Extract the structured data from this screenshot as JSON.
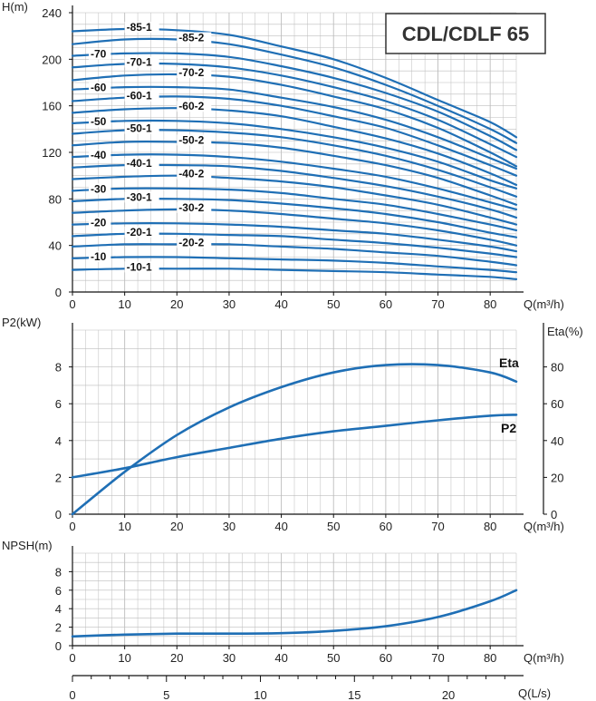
{
  "title": "CDL/CDLF 65",
  "colors": {
    "curve": "#1f6fb5",
    "grid": "#bdbdbd",
    "axis": "#111111",
    "text": "#222222"
  },
  "chart_data": [
    {
      "type": "line",
      "title": "CDL/CDLF 65",
      "xlabel": "Q(m³/h)",
      "ylabel": "H(m)",
      "xlim": [
        0,
        85
      ],
      "ylim": [
        0,
        240
      ],
      "x_ticks": [
        0,
        10,
        20,
        30,
        40,
        50,
        60,
        70,
        80
      ],
      "y_ticks": [
        0,
        40,
        80,
        120,
        160,
        200,
        240
      ],
      "grid": true,
      "series": [
        {
          "name": "-85-1",
          "x": [
            0,
            10,
            20,
            30,
            40,
            50,
            60,
            70,
            80,
            85
          ],
          "y": [
            224,
            226,
            225,
            221,
            211,
            200,
            184,
            165,
            146,
            133
          ]
        },
        {
          "name": "-85-2",
          "x": [
            0,
            10,
            20,
            30,
            40,
            50,
            60,
            70,
            80,
            85
          ],
          "y": [
            213,
            217,
            217,
            213,
            204,
            193,
            178,
            160,
            140,
            128
          ]
        },
        {
          "name": "-70",
          "x": [
            0,
            10,
            20,
            30,
            40,
            50,
            60,
            70,
            80,
            85
          ],
          "y": [
            203,
            205,
            205,
            202,
            194,
            184,
            171,
            155,
            134,
            122
          ]
        },
        {
          "name": "-70-1",
          "x": [
            0,
            10,
            20,
            30,
            40,
            50,
            60,
            70,
            80,
            85
          ],
          "y": [
            193,
            196,
            196,
            193,
            186,
            176,
            164,
            148,
            127,
            116
          ]
        },
        {
          "name": "-70-2",
          "x": [
            0,
            10,
            20,
            30,
            40,
            50,
            60,
            70,
            80,
            85
          ],
          "y": [
            182,
            186,
            187,
            185,
            178,
            168,
            157,
            141,
            120,
            108
          ]
        },
        {
          "name": "-60",
          "x": [
            0,
            10,
            20,
            30,
            40,
            50,
            60,
            70,
            80,
            85
          ],
          "y": [
            174,
            176,
            176,
            174,
            167,
            159,
            148,
            133,
            115,
            106
          ]
        },
        {
          "name": "-60-1",
          "x": [
            0,
            10,
            20,
            30,
            40,
            50,
            60,
            70,
            80,
            85
          ],
          "y": [
            164,
            167,
            168,
            166,
            160,
            151,
            141,
            126,
            109,
            100
          ]
        },
        {
          "name": "-60-2",
          "x": [
            0,
            10,
            20,
            30,
            40,
            50,
            60,
            70,
            80,
            85
          ],
          "y": [
            154,
            157,
            158,
            156,
            151,
            142,
            132,
            119,
            102,
            92
          ]
        },
        {
          "name": "-50",
          "x": [
            0,
            10,
            20,
            30,
            40,
            50,
            60,
            70,
            80,
            85
          ],
          "y": [
            145,
            147,
            147,
            145,
            140,
            133,
            124,
            112,
            96,
            89
          ]
        },
        {
          "name": "-50-1",
          "x": [
            0,
            10,
            20,
            30,
            40,
            50,
            60,
            70,
            80,
            85
          ],
          "y": [
            136,
            139,
            139,
            137,
            133,
            126,
            117,
            105,
            90,
            82
          ]
        },
        {
          "name": "-50-2",
          "x": [
            0,
            10,
            20,
            30,
            40,
            50,
            60,
            70,
            80,
            85
          ],
          "y": [
            126,
            129,
            129,
            128,
            124,
            117,
            109,
            98,
            83,
            75
          ]
        },
        {
          "name": "-40",
          "x": [
            0,
            10,
            20,
            30,
            40,
            50,
            60,
            70,
            80,
            85
          ],
          "y": [
            116,
            118,
            118,
            116,
            112,
            106,
            99,
            89,
            77,
            71
          ]
        },
        {
          "name": "-40-1",
          "x": [
            0,
            10,
            20,
            30,
            40,
            50,
            60,
            70,
            80,
            85
          ],
          "y": [
            107,
            109,
            109,
            108,
            104,
            98,
            91,
            82,
            71,
            64
          ]
        },
        {
          "name": "-40-2",
          "x": [
            0,
            10,
            20,
            30,
            40,
            50,
            60,
            70,
            80,
            85
          ],
          "y": [
            97,
            99,
            100,
            98,
            95,
            90,
            83,
            75,
            64,
            58
          ]
        },
        {
          "name": "-30",
          "x": [
            0,
            10,
            20,
            30,
            40,
            50,
            60,
            70,
            80,
            85
          ],
          "y": [
            87,
            89,
            89,
            88,
            85,
            80,
            75,
            67,
            58,
            53
          ]
        },
        {
          "name": "-30-1",
          "x": [
            0,
            10,
            20,
            30,
            40,
            50,
            60,
            70,
            80,
            85
          ],
          "y": [
            78,
            80,
            80,
            79,
            76,
            72,
            67,
            60,
            51,
            47
          ]
        },
        {
          "name": "-30-2",
          "x": [
            0,
            10,
            20,
            30,
            40,
            50,
            60,
            70,
            80,
            85
          ],
          "y": [
            68,
            70,
            71,
            70,
            67,
            63,
            59,
            53,
            45,
            40
          ]
        },
        {
          "name": "-20",
          "x": [
            0,
            10,
            20,
            30,
            40,
            50,
            60,
            70,
            80,
            85
          ],
          "y": [
            58,
            59,
            59,
            58,
            56,
            53,
            50,
            45,
            39,
            35
          ]
        },
        {
          "name": "-20-1",
          "x": [
            0,
            10,
            20,
            30,
            40,
            50,
            60,
            70,
            80,
            85
          ],
          "y": [
            48,
            50,
            50,
            49,
            48,
            45,
            42,
            38,
            33,
            30
          ]
        },
        {
          "name": "-20-2",
          "x": [
            0,
            10,
            20,
            30,
            40,
            50,
            60,
            70,
            80,
            85
          ],
          "y": [
            39,
            41,
            41,
            41,
            39,
            37,
            34,
            31,
            26,
            23
          ]
        },
        {
          "name": "-10",
          "x": [
            0,
            10,
            20,
            30,
            40,
            50,
            60,
            70,
            80,
            85
          ],
          "y": [
            29,
            30,
            30,
            29,
            28,
            27,
            25,
            22,
            19,
            17
          ]
        },
        {
          "name": "-10-1",
          "x": [
            0,
            10,
            20,
            30,
            40,
            50,
            60,
            70,
            80,
            85
          ],
          "y": [
            19,
            20,
            20,
            20,
            19,
            18,
            17,
            15,
            13,
            11
          ]
        }
      ]
    },
    {
      "type": "line",
      "xlabel": "Q(m³/h)",
      "ylabel": "P2(kW)",
      "y2label": "Eta(%)",
      "xlim": [
        0,
        85
      ],
      "ylim": [
        0,
        10
      ],
      "y2lim": [
        0,
        100
      ],
      "x_ticks": [
        0,
        10,
        20,
        30,
        40,
        50,
        60,
        70,
        80
      ],
      "y_ticks": [
        0,
        2,
        4,
        6,
        8
      ],
      "y2_ticks": [
        0,
        20,
        40,
        60,
        80
      ],
      "grid": true,
      "series": [
        {
          "name": "Eta",
          "axis": "right",
          "x": [
            0,
            10,
            20,
            30,
            40,
            50,
            60,
            70,
            80,
            85
          ],
          "y": [
            0,
            23,
            43,
            58,
            69,
            77,
            81,
            81,
            77,
            72
          ]
        },
        {
          "name": "P2",
          "axis": "left",
          "x": [
            0,
            10,
            20,
            30,
            40,
            50,
            60,
            70,
            80,
            85
          ],
          "y": [
            2.0,
            2.5,
            3.1,
            3.6,
            4.1,
            4.5,
            4.8,
            5.1,
            5.35,
            5.4
          ]
        }
      ]
    },
    {
      "type": "line",
      "xlabel": "Q(m³/h)",
      "ylabel": "NPSH(m)",
      "xlim": [
        0,
        85
      ],
      "ylim": [
        0,
        10
      ],
      "x_ticks": [
        0,
        10,
        20,
        30,
        40,
        50,
        60,
        70,
        80
      ],
      "y_ticks": [
        0,
        2,
        4,
        6,
        8
      ],
      "grid": true,
      "series": [
        {
          "x": [
            0,
            10,
            20,
            30,
            40,
            50,
            60,
            70,
            80,
            85
          ],
          "y": [
            1.0,
            1.2,
            1.3,
            1.3,
            1.35,
            1.6,
            2.1,
            3.1,
            4.8,
            6.0
          ]
        }
      ]
    },
    {
      "type": "axis",
      "xlabel": "Q(L/s)",
      "x_ticks": [
        0,
        5,
        10,
        15,
        20
      ]
    }
  ]
}
